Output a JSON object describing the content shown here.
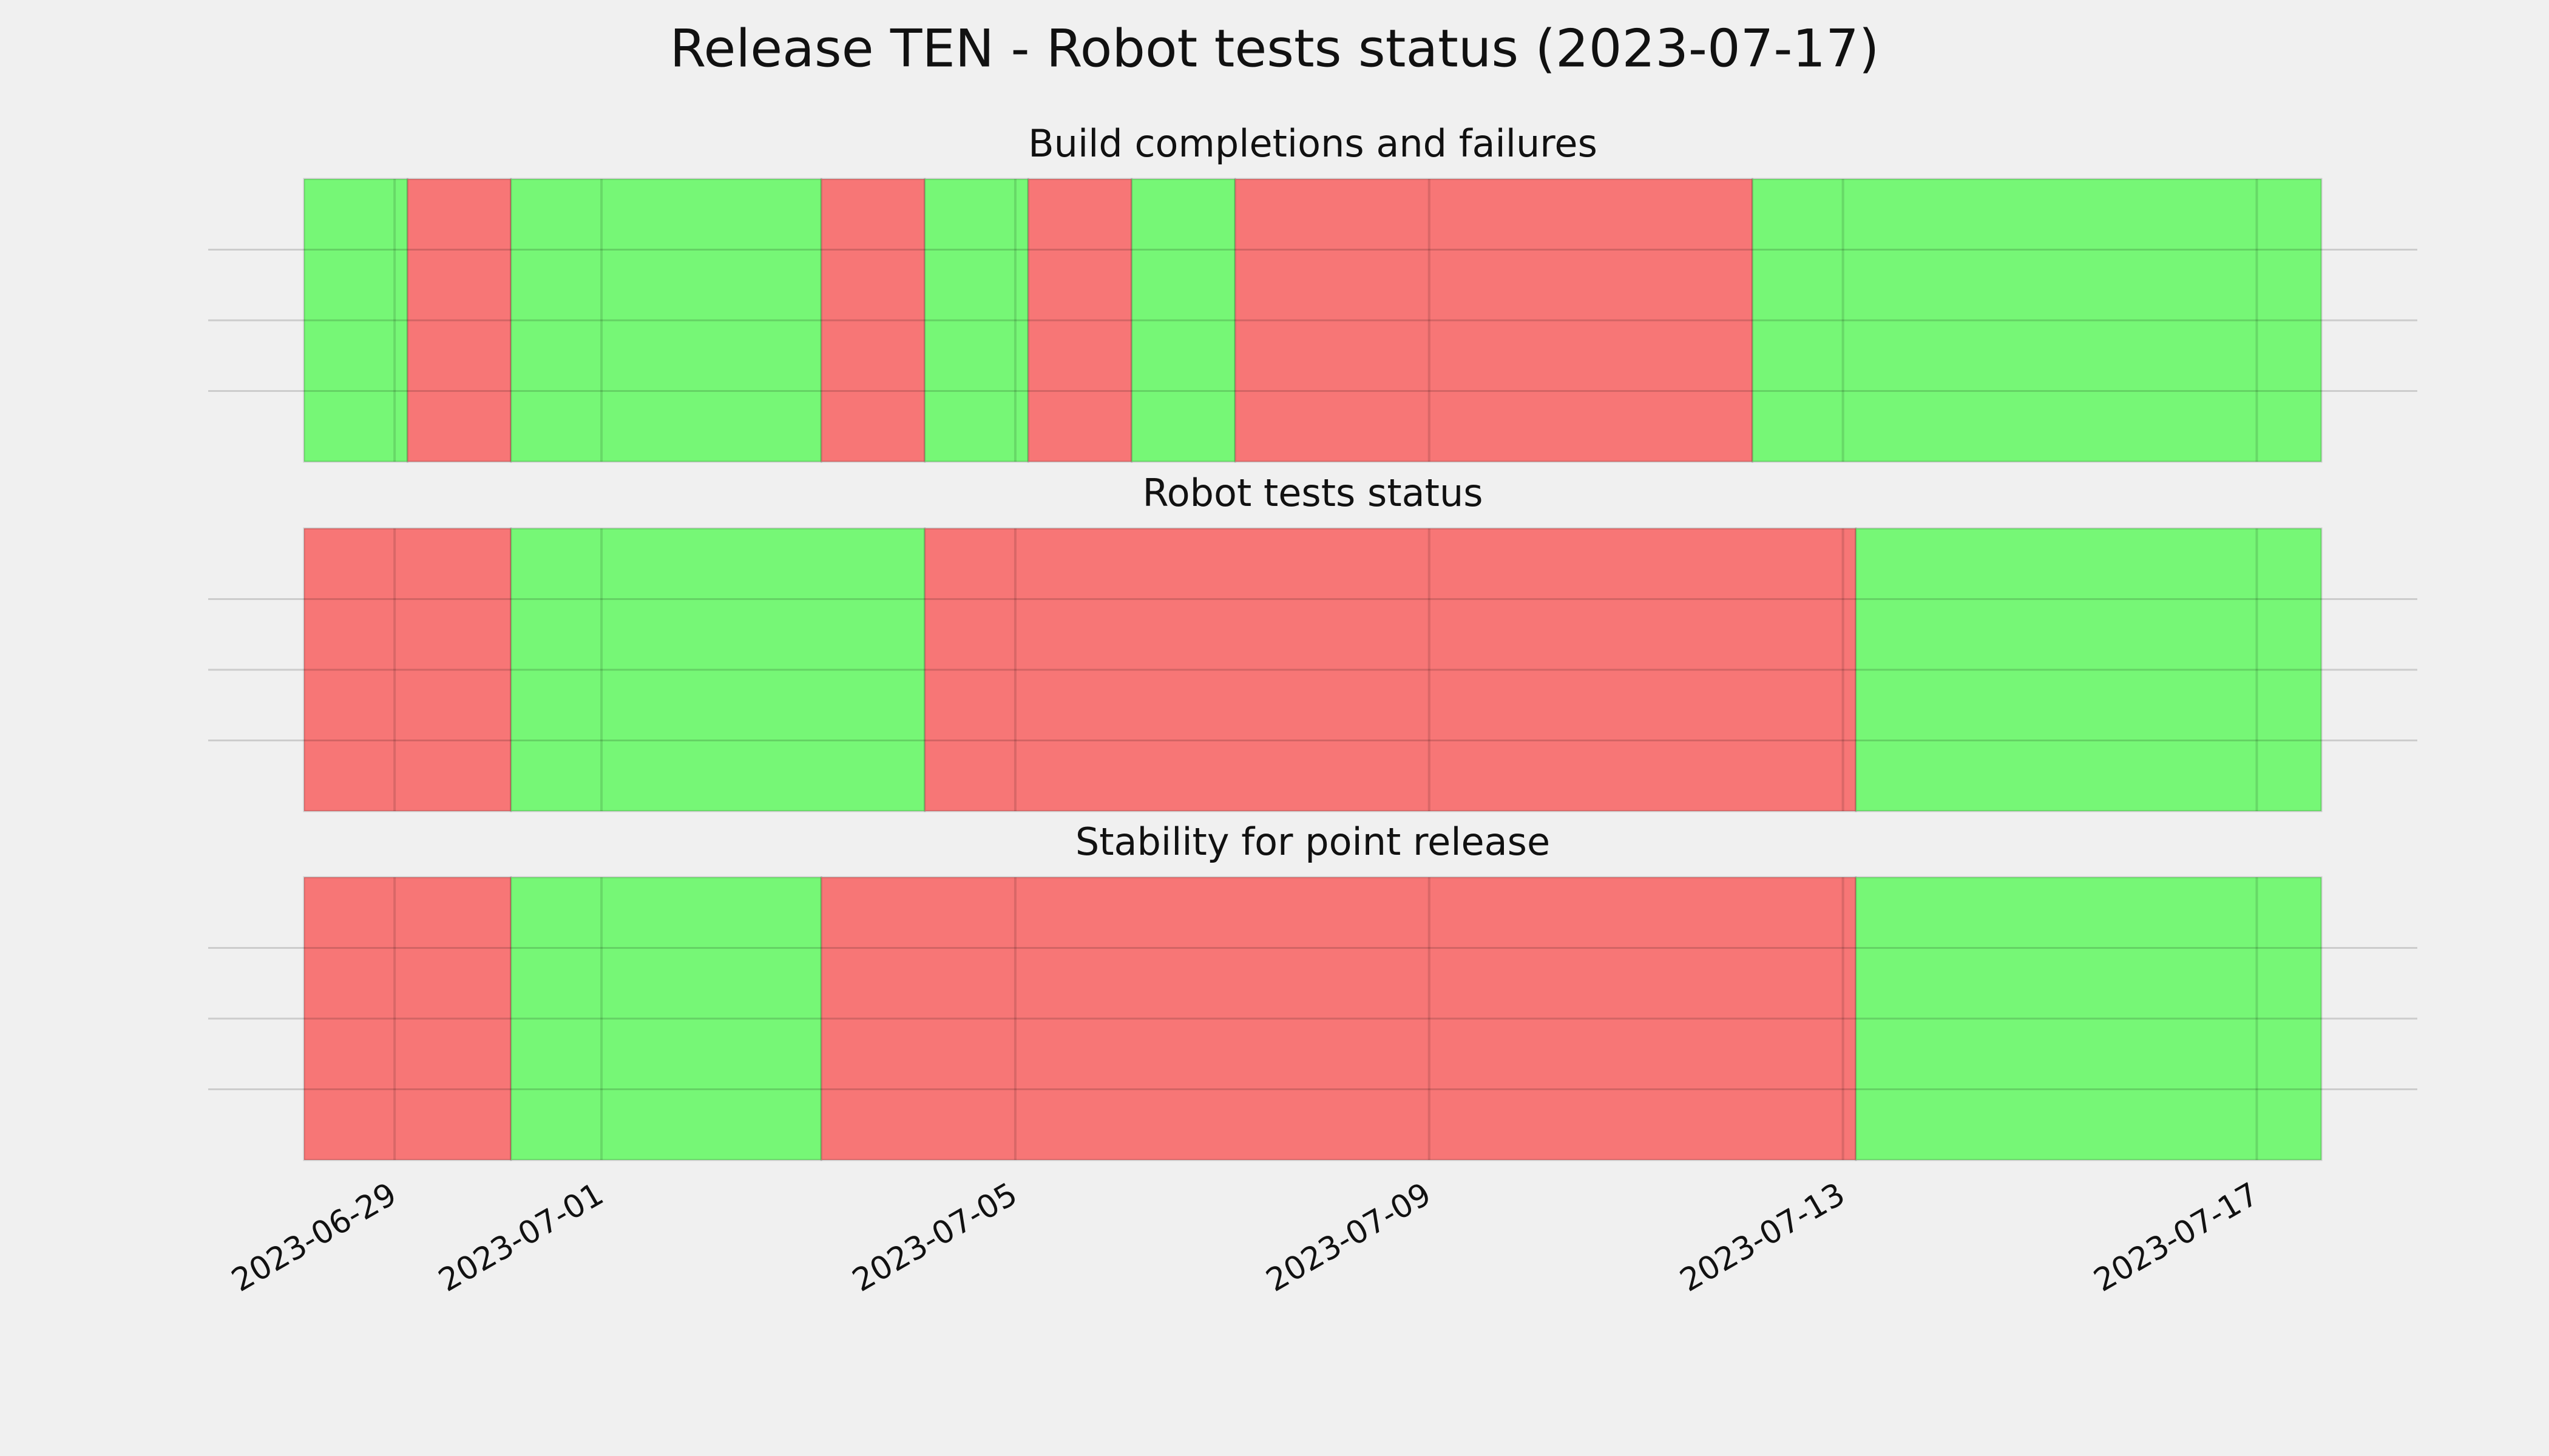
{
  "chart_data": {
    "type": "timeline",
    "title": "Release TEN - Robot tests status (2023-07-17)",
    "xlim": [
      "2023-06-28T03:00",
      "2023-07-17T15:00"
    ],
    "xticks": [
      "2023-06-29",
      "2023-07-01",
      "2023-07-05",
      "2023-07-09",
      "2023-07-13",
      "2023-07-17"
    ],
    "grid": true,
    "panels": [
      {
        "title": "Build completions and failures",
        "segments": [
          {
            "start": "2023-06-28T03:00",
            "end": "2023-06-29T03:00",
            "color": "#76f776"
          },
          {
            "start": "2023-06-29T03:00",
            "end": "2023-06-30T03:00",
            "color": "#f77676"
          },
          {
            "start": "2023-06-30T03:00",
            "end": "2023-07-03T03:00",
            "color": "#76f776"
          },
          {
            "start": "2023-07-03T03:00",
            "end": "2023-07-04T03:00",
            "color": "#f77676"
          },
          {
            "start": "2023-07-04T03:00",
            "end": "2023-07-05T03:00",
            "color": "#76f776"
          },
          {
            "start": "2023-07-05T03:00",
            "end": "2023-07-06T03:00",
            "color": "#f77676"
          },
          {
            "start": "2023-07-06T03:00",
            "end": "2023-07-07T03:00",
            "color": "#76f776"
          },
          {
            "start": "2023-07-07T03:00",
            "end": "2023-07-12T03:00",
            "color": "#f77676"
          },
          {
            "start": "2023-07-12T03:00",
            "end": "2023-07-17T15:00",
            "color": "#76f776"
          }
        ]
      },
      {
        "title": "Robot tests status",
        "segments": [
          {
            "start": "2023-06-28T03:00",
            "end": "2023-06-30T03:00",
            "color": "#f77676"
          },
          {
            "start": "2023-06-30T03:00",
            "end": "2023-07-04T03:00",
            "color": "#76f776"
          },
          {
            "start": "2023-07-04T03:00",
            "end": "2023-07-13T03:00",
            "color": "#f77676"
          },
          {
            "start": "2023-07-13T03:00",
            "end": "2023-07-17T15:00",
            "color": "#76f776"
          }
        ]
      },
      {
        "title": "Stability for point release",
        "segments": [
          {
            "start": "2023-06-28T03:00",
            "end": "2023-06-30T03:00",
            "color": "#f77676"
          },
          {
            "start": "2023-06-30T03:00",
            "end": "2023-07-03T03:00",
            "color": "#76f776"
          },
          {
            "start": "2023-07-03T03:00",
            "end": "2023-07-13T03:00",
            "color": "#f77676"
          },
          {
            "start": "2023-07-13T03:00",
            "end": "2023-07-17T15:00",
            "color": "#76f776"
          }
        ]
      }
    ]
  }
}
